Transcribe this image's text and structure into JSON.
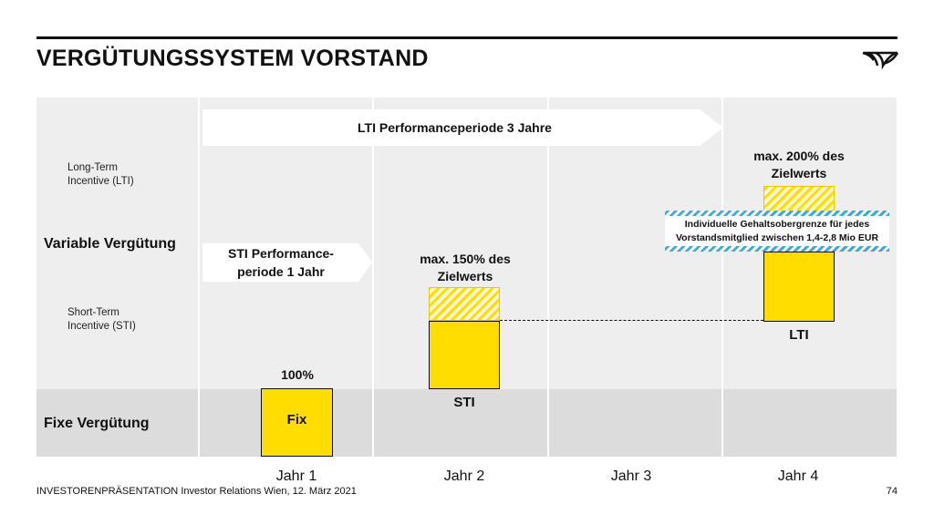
{
  "header": {
    "title": "VERGÜTUNGSSYSTEM VORSTAND"
  },
  "icons": {
    "logo": "post-horn-logo-icon"
  },
  "diagram": {
    "row_labels": {
      "lti_l1": "Long-Term",
      "lti_l2": "Incentive (LTI)",
      "variable": "Variable Vergütung",
      "sti_l1": "Short-Term",
      "sti_l2": "Incentive (STI)",
      "fixed": "Fixe Vergütung"
    },
    "lti_period": "LTI Performanceperiode 3 Jahre",
    "sti_period": {
      "l1": "STI Performance-",
      "l2": "periode 1 Jahr"
    },
    "fix_pct": "100%",
    "fix_label": "Fix",
    "sti_max": {
      "l1": "max. 150% des",
      "l2": "Zielwerts"
    },
    "sti_label": "STI",
    "lti_max": {
      "l1": "max. 200% des",
      "l2": "Zielwerts"
    },
    "lti_label": "LTI",
    "cap_note": {
      "l1": "Individuelle Gehaltsobergrenze für jedes",
      "l2": "Vorstandsmitglied zwischen 1,4-2,8 Mio EUR"
    },
    "years": [
      "Jahr 1",
      "Jahr 2",
      "Jahr 3",
      "Jahr 4"
    ],
    "colors": {
      "bar": "#ffdd00",
      "panel": "#eeeeee",
      "fixed_band": "#dcdcdc",
      "cap_stripe": "#3fa9d8"
    }
  },
  "footer": {
    "presentation": "INVESTORENPRÄSENTATION",
    "info": "Investor Relations Wien, 12. März 2021",
    "page": "74"
  }
}
